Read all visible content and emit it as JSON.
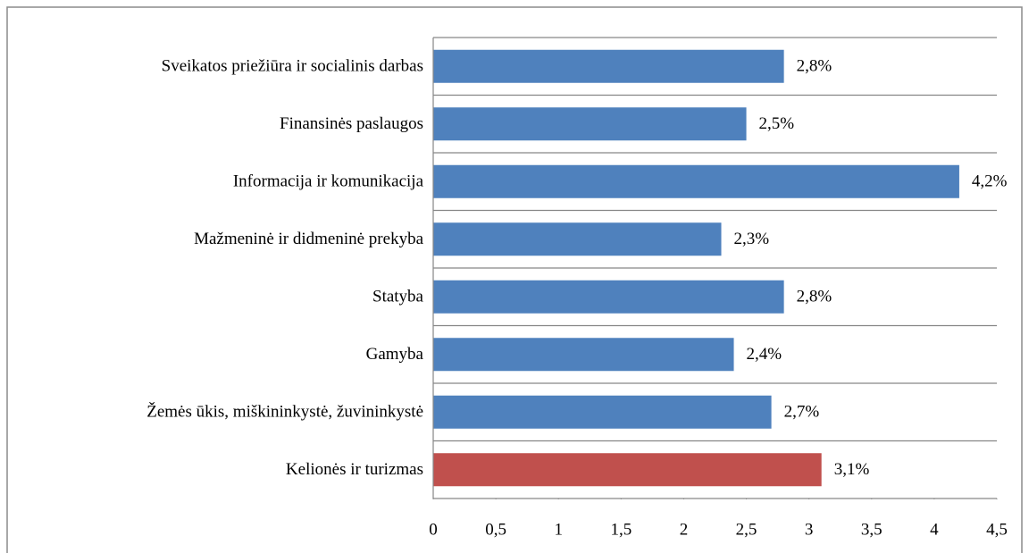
{
  "chart_data": {
    "type": "hbar",
    "categories": [
      "Sveikatos priežiūra ir socialinis darbas",
      "Finansinės paslaugos",
      "Informacija ir komunikacija",
      "Mažmeninė ir didmeninė prekyba",
      "Statyba",
      "Gamyba",
      "Žemės ūkis, miškininkystė, žuvininkystė",
      "Kelionės ir turizmas"
    ],
    "values": [
      2.8,
      2.5,
      4.2,
      2.3,
      2.8,
      2.4,
      2.7,
      3.1
    ],
    "value_labels": [
      "2,8%",
      "2,5%",
      "4,2%",
      "2,3%",
      "2,8%",
      "2,4%",
      "2,7%",
      "3,1%"
    ],
    "colors": [
      "#4f81bd",
      "#4f81bd",
      "#4f81bd",
      "#4f81bd",
      "#4f81bd",
      "#4f81bd",
      "#4f81bd",
      "#c0504d"
    ],
    "xlim": [
      0,
      4.5
    ],
    "xticks": [
      0,
      {
        "value": 0.5,
        "label": "0,5"
      },
      1,
      {
        "value": 1.5,
        "label": "1,5"
      },
      2,
      {
        "value": 2.5,
        "label": "2,5"
      },
      3,
      {
        "value": 3.5,
        "label": "3,5"
      },
      4,
      {
        "value": 4.5,
        "label": "4,5"
      }
    ],
    "grid": true
  }
}
